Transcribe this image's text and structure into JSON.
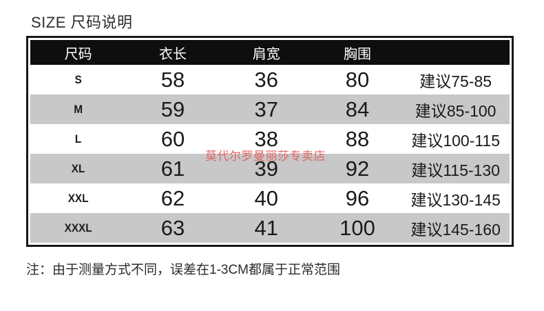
{
  "title": "SIZE 尺码说明",
  "table": {
    "headers": [
      "尺码",
      "衣长",
      "肩宽",
      "胸围",
      ""
    ],
    "rows": [
      {
        "size": "S",
        "length": "58",
        "shoulder": "36",
        "bust": "80",
        "suggest": "建议75-85"
      },
      {
        "size": "M",
        "length": "59",
        "shoulder": "37",
        "bust": "84",
        "suggest": "建议85-100"
      },
      {
        "size": "L",
        "length": "60",
        "shoulder": "38",
        "bust": "88",
        "suggest": "建议100-115"
      },
      {
        "size": "XL",
        "length": "61",
        "shoulder": "39",
        "bust": "92",
        "suggest": "建议115-130"
      },
      {
        "size": "XXL",
        "length": "62",
        "shoulder": "40",
        "bust": "96",
        "suggest": "建议130-145"
      },
      {
        "size": "XXXL",
        "length": "63",
        "shoulder": "41",
        "bust": "100",
        "suggest": "建议145-160"
      }
    ]
  },
  "watermark": "莫代尔罗曼丽莎专卖店",
  "note": "注：由于测量方式不同，误差在1-3CM都属于正常范围",
  "colors": {
    "header-bg": "#0e0e0e",
    "row-alt": "#c8c8c8",
    "border-color": "#161616",
    "watermark-color": "#e25a5a"
  }
}
